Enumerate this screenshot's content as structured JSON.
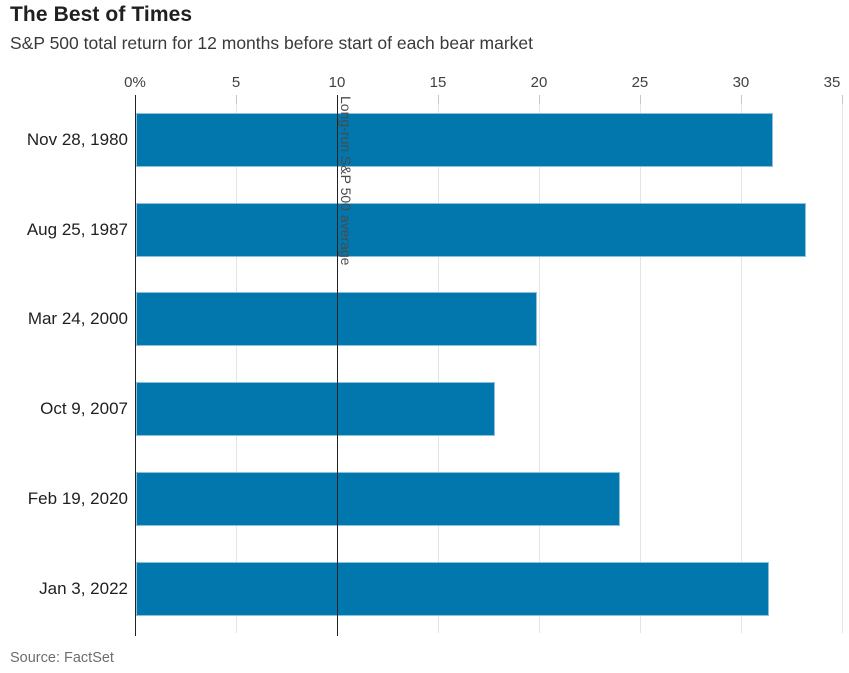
{
  "header": {
    "title": "The Best of Times",
    "subtitle": "S&P 500 total return for 12 months before start of each bear market"
  },
  "footer": {
    "source": "Source: FactSet"
  },
  "colors": {
    "bar": "#0277ad",
    "bar_edge": "#8dc0d9",
    "grid": "#e4e4e4",
    "axis": "#222222",
    "reference_line": "#222222"
  },
  "chart_data": {
    "type": "bar",
    "orientation": "horizontal",
    "title": "The Best of Times",
    "subtitle": "S&P 500 total return for 12 months before start of each bear market",
    "categories": [
      "Nov 28, 1980",
      "Aug 25, 1987",
      "Mar 24, 2000",
      "Oct 9, 2007",
      "Feb 19, 2020",
      "Jan 3, 2022"
    ],
    "values": [
      31.6,
      33.2,
      19.9,
      17.8,
      24.0,
      31.4
    ],
    "unit": "percent",
    "x_ticks": [
      0,
      5,
      10,
      15,
      20,
      25,
      30,
      35
    ],
    "x_tick_labels": [
      "0%",
      "5",
      "10",
      "15",
      "20",
      "25",
      "30",
      "35"
    ],
    "xlim": [
      0,
      35.35
    ],
    "grid": true,
    "legend": false,
    "reference_line": {
      "value": 10,
      "label": "Long-run S&P 500 average"
    },
    "source": "Source: FactSet"
  }
}
